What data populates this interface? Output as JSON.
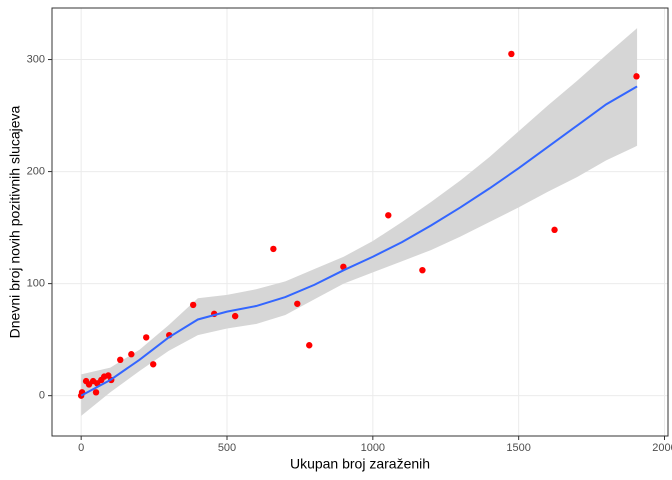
{
  "chart_data": {
    "type": "scatter",
    "x_label": "Ukupan broj zaraženih",
    "y_label": "Dnevni broj novih pozitivnih slucajeva",
    "x": [
      0,
      3,
      17,
      27,
      41,
      51,
      55,
      69,
      79,
      93,
      103,
      134,
      172,
      223,
      247,
      302,
      384,
      456,
      528,
      659,
      741,
      782,
      899,
      1053,
      1170,
      1475,
      1623,
      1904
    ],
    "series": [
      {
        "color": "#ff0000",
        "values": [
          0,
          3,
          13,
          10,
          13,
          3,
          11,
          14,
          17,
          18,
          14,
          32,
          37,
          52,
          28,
          54,
          81,
          73,
          71,
          131,
          82,
          45,
          115,
          161,
          112,
          305,
          148,
          285
        ]
      }
    ],
    "smooth": {
      "color": "#3366ff",
      "band_color": "#d6d6d6",
      "x": [
        0,
        100,
        200,
        300,
        400,
        500,
        600,
        700,
        800,
        900,
        1000,
        1100,
        1200,
        1300,
        1400,
        1500,
        1600,
        1700,
        1800,
        1906
      ],
      "values": [
        0,
        14,
        32,
        52,
        68,
        75,
        80,
        88,
        99,
        112,
        124,
        137,
        152,
        168,
        185,
        203,
        222,
        241,
        260,
        276
      ],
      "lower": [
        -18,
        3,
        22,
        40,
        54,
        60,
        64,
        72,
        86,
        100,
        110,
        120,
        130,
        142,
        155,
        168,
        182,
        195,
        210,
        223
      ],
      "upper": [
        19,
        25,
        41,
        63,
        87,
        90,
        95,
        102,
        113,
        124,
        138,
        155,
        173,
        192,
        213,
        236,
        259,
        281,
        304,
        328
      ]
    },
    "xlim": [
      -100,
      2012
    ],
    "ylim": [
      -36,
      346
    ],
    "xticks": [
      0,
      500,
      1000,
      1500,
      2000
    ],
    "yticks": [
      0,
      100,
      200,
      300
    ],
    "grid": true
  }
}
